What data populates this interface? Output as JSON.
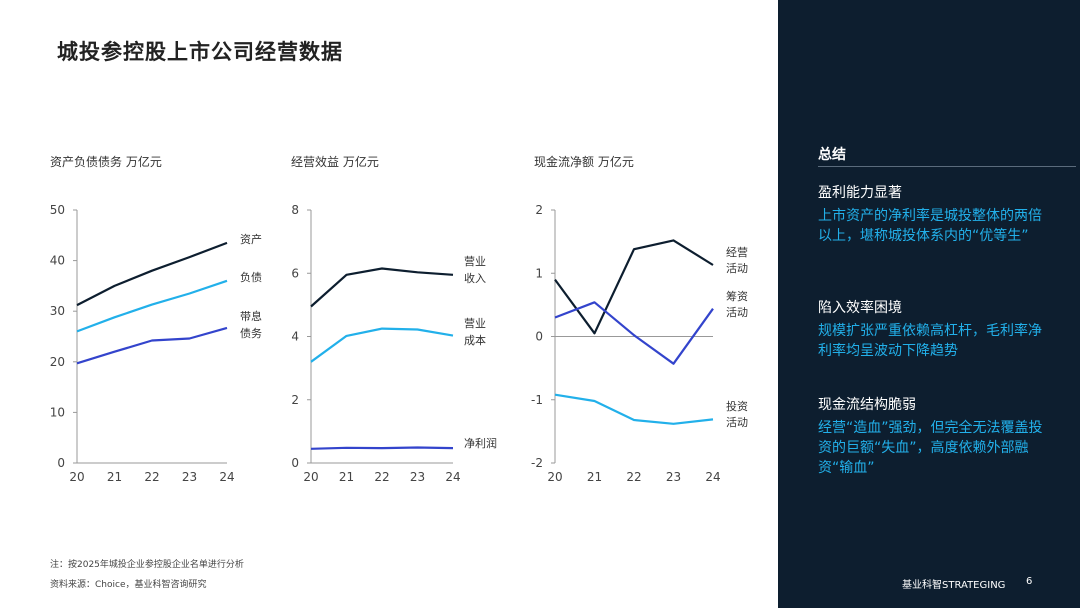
{
  "title": "城投参控股上市公司经营数据",
  "colors": {
    "dark": "#0d1e2f",
    "cyan": "#22b0ea",
    "blue": "#3344cc",
    "sidebar_bg": "#0d1e2f"
  },
  "chart_data": [
    {
      "type": "line",
      "title": "资产负债债务 万亿元",
      "categories": [
        "20",
        "21",
        "22",
        "23",
        "24"
      ],
      "ylim": [
        0,
        50
      ],
      "yticks": [
        "0",
        "10",
        "20",
        "30",
        "40",
        "50"
      ],
      "series": [
        {
          "name": "资产",
          "label_lines": [
            "资产"
          ],
          "color": "dark",
          "values": [
            31.2,
            35.0,
            38.0,
            40.7,
            43.5
          ]
        },
        {
          "name": "负债",
          "label_lines": [
            "负债"
          ],
          "color": "cyan",
          "values": [
            26.0,
            28.8,
            31.3,
            33.5,
            36.0
          ]
        },
        {
          "name": "带息债务",
          "label_lines": [
            "带息",
            "债务"
          ],
          "color": "blue",
          "values": [
            19.7,
            22.0,
            24.2,
            24.6,
            26.7
          ]
        }
      ]
    },
    {
      "type": "line",
      "title": "经营效益 万亿元",
      "categories": [
        "20",
        "21",
        "22",
        "23",
        "24"
      ],
      "ylim": [
        0,
        8
      ],
      "yticks": [
        "0",
        "2",
        "4",
        "6",
        "8"
      ],
      "series": [
        {
          "name": "营业收入",
          "label_lines": [
            "营业",
            "收入"
          ],
          "color": "dark",
          "values": [
            4.95,
            5.95,
            6.15,
            6.03,
            5.95
          ]
        },
        {
          "name": "营业成本",
          "label_lines": [
            "营业",
            "成本"
          ],
          "color": "cyan",
          "values": [
            3.2,
            4.02,
            4.25,
            4.22,
            4.03
          ]
        },
        {
          "name": "净利润",
          "label_lines": [
            "净利润"
          ],
          "color": "blue",
          "values": [
            0.45,
            0.48,
            0.47,
            0.49,
            0.47
          ]
        }
      ]
    },
    {
      "type": "line",
      "title": "现金流净额 万亿元",
      "categories": [
        "20",
        "21",
        "22",
        "23",
        "24"
      ],
      "ylim": [
        -2,
        2
      ],
      "yticks": [
        "-2",
        "-1",
        "0",
        "1",
        "2"
      ],
      "series": [
        {
          "name": "经营活动",
          "label_lines": [
            "经营",
            "活动"
          ],
          "color": "dark",
          "values": [
            0.9,
            0.05,
            1.38,
            1.52,
            1.13
          ]
        },
        {
          "name": "筹资活动",
          "label_lines": [
            "筹资",
            "活动"
          ],
          "color": "blue",
          "values": [
            0.3,
            0.54,
            0.02,
            -0.43,
            0.44
          ]
        },
        {
          "name": "投资活动",
          "label_lines": [
            "投资",
            "活动"
          ],
          "color": "cyan",
          "values": [
            -0.92,
            -1.02,
            -1.32,
            -1.38,
            -1.31
          ]
        }
      ]
    }
  ],
  "footnotes": {
    "note": "注：按2025年城投企业参控股企业名单进行分析",
    "source": "资料来源：Choice，基业科智咨询研究"
  },
  "sidebar": {
    "heading": "总结",
    "items": [
      {
        "title": "盈利能力显著",
        "body": "上市资产的净利率是城投整体的两倍以上，堪称城投体系内的“优等生”"
      },
      {
        "title": "陷入效率困境",
        "body": "规模扩张严重依赖高杠杆，毛利率净利率均呈波动下降趋势"
      },
      {
        "title": "现金流结构脆弱",
        "body": "经营“造血”强劲，但完全无法覆盖投资的巨额“失血”，高度依赖外部融资“输血”"
      }
    ],
    "brand": "基业科智STRATEGING",
    "page": "6"
  }
}
